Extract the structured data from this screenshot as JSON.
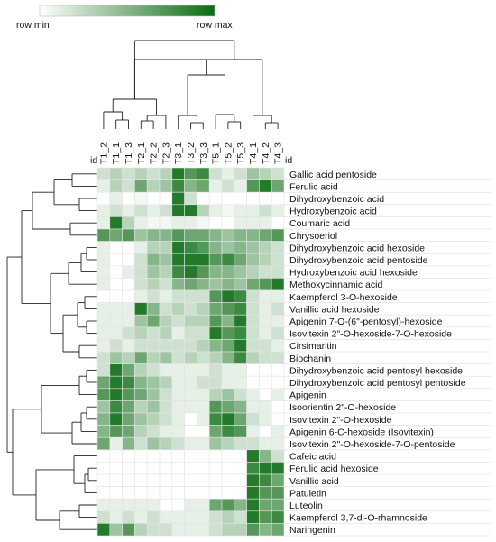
{
  "chart_data": {
    "type": "heatmap",
    "title": "",
    "legend": {
      "min_label": "row min",
      "max_label": "row max",
      "placement": "top-left"
    },
    "id_label": "id",
    "color_min": "#ffffff",
    "color_max": "#0b6b12",
    "columns": [
      "T1_2",
      "T1_1",
      "T1_3",
      "T2_1",
      "T2_2",
      "T2_3",
      "T3_1",
      "T3_2",
      "T3_3",
      "T5_1",
      "T5_2",
      "T5_3",
      "T4_1",
      "T4_2",
      "T4_3"
    ],
    "rows": [
      {
        "name": "Gallic acid pentoside",
        "values": [
          0.2,
          0.3,
          0.2,
          0.3,
          0.2,
          0.3,
          0.9,
          0.7,
          0.8,
          0.2,
          0.1,
          0.2,
          0.4,
          0.3,
          0.2
        ]
      },
      {
        "name": "Ferulic acid",
        "values": [
          0.1,
          0.3,
          0.2,
          0.6,
          0.3,
          0.4,
          0.8,
          0.5,
          0.6,
          0.1,
          0.2,
          0.1,
          0.7,
          0.9,
          0.6
        ]
      },
      {
        "name": "Dihydroxybenzoic acid",
        "values": [
          0.0,
          0.1,
          0.0,
          0.05,
          0.0,
          0.0,
          0.9,
          0.2,
          0.0,
          0.0,
          0.0,
          0.0,
          0.0,
          0.0,
          0.0
        ]
      },
      {
        "name": "Hydroxybenzoic acid",
        "values": [
          0.1,
          0.2,
          0.1,
          0.2,
          0.1,
          0.2,
          0.9,
          0.9,
          0.3,
          0.1,
          0.05,
          0.1,
          0.1,
          0.2,
          0.1
        ]
      },
      {
        "name": "Coumaric acid",
        "values": [
          0.1,
          0.9,
          0.3,
          0.1,
          0.05,
          0.05,
          0.1,
          0.1,
          0.05,
          0.0,
          0.0,
          0.1,
          0.1,
          0.1,
          0.0
        ]
      },
      {
        "name": "Chrysoeriol",
        "values": [
          0.7,
          0.6,
          0.7,
          0.4,
          0.5,
          0.5,
          0.7,
          0.6,
          0.6,
          0.5,
          0.4,
          0.5,
          0.5,
          0.6,
          0.7
        ]
      },
      {
        "name": "Dihydroxybenzoic acid hexoside",
        "values": [
          0.1,
          0.0,
          0.0,
          0.1,
          0.3,
          0.3,
          0.9,
          0.8,
          0.7,
          0.5,
          0.4,
          0.5,
          0.4,
          0.3,
          0.2
        ]
      },
      {
        "name": "Dihydroxybenzoic acid pentoside",
        "values": [
          0.1,
          0.0,
          0.0,
          0.2,
          0.5,
          0.4,
          0.9,
          0.9,
          0.9,
          0.7,
          0.8,
          0.6,
          0.4,
          0.3,
          0.2
        ]
      },
      {
        "name": "Hydroxybenzoic acid hexoside",
        "values": [
          0.1,
          0.0,
          0.1,
          0.2,
          0.4,
          0.3,
          0.8,
          0.9,
          0.7,
          0.5,
          0.5,
          0.4,
          0.3,
          0.2,
          0.2
        ]
      },
      {
        "name": "Methoxycinnamic acid",
        "values": [
          0.1,
          0.0,
          0.0,
          0.2,
          0.3,
          0.2,
          0.5,
          0.6,
          0.5,
          0.4,
          0.5,
          0.4,
          0.6,
          0.7,
          0.9
        ]
      },
      {
        "name": "Kaempferol 3-O-hexoside",
        "values": [
          0.0,
          0.0,
          0.0,
          0.1,
          0.2,
          0.1,
          0.2,
          0.2,
          0.2,
          0.7,
          0.9,
          0.8,
          0.2,
          0.1,
          0.1
        ]
      },
      {
        "name": "Vanillic acid hexoside",
        "values": [
          0.1,
          0.1,
          0.1,
          0.9,
          0.5,
          0.2,
          0.3,
          0.2,
          0.3,
          0.6,
          0.7,
          0.8,
          0.2,
          0.1,
          0.2
        ]
      },
      {
        "name": "Apigenin 7-O-(6\"-pentosyl)-hexoside",
        "values": [
          0.1,
          0.1,
          0.1,
          0.4,
          0.6,
          0.3,
          0.2,
          0.3,
          0.3,
          0.7,
          0.5,
          0.9,
          0.2,
          0.1,
          0.1
        ]
      },
      {
        "name": "Isovitexin 2\"-O-hexoside-7-O-hexoside",
        "values": [
          0.1,
          0.1,
          0.2,
          0.3,
          0.2,
          0.3,
          0.1,
          0.2,
          0.2,
          0.9,
          0.7,
          0.8,
          0.2,
          0.1,
          0.2
        ]
      },
      {
        "name": "Cirsimaritin",
        "values": [
          0.1,
          0.2,
          0.1,
          0.2,
          0.2,
          0.2,
          0.2,
          0.2,
          0.3,
          0.5,
          0.6,
          0.9,
          0.2,
          0.2,
          0.1
        ]
      },
      {
        "name": "Biochanin",
        "values": [
          0.2,
          0.4,
          0.3,
          0.6,
          0.3,
          0.4,
          0.2,
          0.3,
          0.2,
          0.3,
          0.5,
          0.8,
          0.3,
          0.2,
          0.2
        ]
      },
      {
        "name": "Dihydroxybenzoic acid pentosyl hexoside",
        "values": [
          0.2,
          0.9,
          0.6,
          0.3,
          0.2,
          0.1,
          0.1,
          0.1,
          0.1,
          0.2,
          0.1,
          0.1,
          0.0,
          0.0,
          0.0
        ]
      },
      {
        "name": "Dihydroxybenzoic acid pentosyl pentoside",
        "values": [
          0.6,
          0.9,
          0.8,
          0.5,
          0.4,
          0.3,
          0.1,
          0.1,
          0.2,
          0.2,
          0.1,
          0.1,
          0.0,
          0.0,
          0.0
        ]
      },
      {
        "name": "Apigenin",
        "values": [
          0.7,
          0.9,
          0.7,
          0.6,
          0.4,
          0.2,
          0.1,
          0.1,
          0.1,
          0.3,
          0.4,
          0.2,
          0.1,
          0.0,
          0.1
        ]
      },
      {
        "name": "Isoorientin 2\"-O-hexoside",
        "values": [
          0.4,
          0.8,
          0.6,
          0.3,
          0.4,
          0.2,
          0.1,
          0.1,
          0.1,
          0.7,
          0.6,
          0.5,
          0.1,
          0.1,
          0.0
        ]
      },
      {
        "name": "Isovitexin 2\"-O-hexoside",
        "values": [
          0.5,
          0.9,
          0.6,
          0.4,
          0.3,
          0.2,
          0.1,
          0.0,
          0.1,
          0.8,
          0.9,
          0.6,
          0.2,
          0.1,
          0.0
        ]
      },
      {
        "name": "Apigenin 6-C-hexoside (Isovitexin)",
        "values": [
          0.5,
          0.7,
          0.6,
          0.3,
          0.2,
          0.1,
          0.1,
          0.0,
          0.0,
          0.6,
          0.8,
          0.7,
          0.1,
          0.0,
          0.1
        ]
      },
      {
        "name": "Isovitexin 2\"-O-hexoside-7-O-pentoside",
        "values": [
          0.6,
          0.1,
          0.5,
          0.2,
          0.4,
          0.3,
          0.2,
          0.1,
          0.1,
          0.4,
          0.3,
          0.2,
          0.2,
          0.1,
          0.1
        ]
      },
      {
        "name": "Cafeic acid",
        "values": [
          0.0,
          0.0,
          0.0,
          0.0,
          0.0,
          0.0,
          0.0,
          0.0,
          0.0,
          0.0,
          0.0,
          0.0,
          0.9,
          0.5,
          0.2
        ]
      },
      {
        "name": "Ferulic acid hexoside",
        "values": [
          0.0,
          0.0,
          0.0,
          0.0,
          0.0,
          0.0,
          0.0,
          0.0,
          0.0,
          0.0,
          0.0,
          0.0,
          0.8,
          0.9,
          0.9
        ]
      },
      {
        "name": "Vanillic acid",
        "values": [
          0.0,
          0.0,
          0.0,
          0.0,
          0.0,
          0.0,
          0.0,
          0.0,
          0.0,
          0.0,
          0.0,
          0.0,
          0.9,
          0.8,
          0.6
        ]
      },
      {
        "name": "Patuletin",
        "values": [
          0.0,
          0.0,
          0.0,
          0.0,
          0.0,
          0.0,
          0.0,
          0.0,
          0.0,
          0.0,
          0.0,
          0.0,
          0.9,
          0.7,
          0.7
        ]
      },
      {
        "name": "Luteolin",
        "values": [
          0.1,
          0.1,
          0.1,
          0.1,
          0.1,
          0.0,
          0.0,
          0.1,
          0.1,
          0.6,
          0.7,
          0.5,
          0.9,
          0.6,
          0.6
        ]
      },
      {
        "name": "Kaempferol 3,7-di-O-rhamnoside",
        "values": [
          0.2,
          0.1,
          0.2,
          0.1,
          0.2,
          0.1,
          0.1,
          0.1,
          0.1,
          0.2,
          0.3,
          0.2,
          0.9,
          0.7,
          0.8
        ]
      },
      {
        "name": "Naringenin",
        "values": [
          0.9,
          0.4,
          0.7,
          0.3,
          0.2,
          0.2,
          0.1,
          0.1,
          0.1,
          0.2,
          0.3,
          0.3,
          0.7,
          0.5,
          0.6
        ]
      }
    ],
    "column_dendrogram": [
      [
        0,
        2,
        1,
        0.78
      ],
      [
        1,
        3,
        15,
        0.78
      ],
      [
        4,
        5,
        16,
        0.7
      ],
      [
        6,
        8,
        7,
        0.88
      ],
      [
        7,
        17,
        18,
        0.71
      ],
      [
        9,
        11,
        10,
        0.84
      ],
      [
        10,
        12,
        14,
        13,
        0.86
      ],
      [
        11,
        20,
        21,
        0.8
      ]
    ],
    "row_dendrogram": [
      [
        0,
        1,
        0.94
      ],
      [
        2,
        3,
        0.85
      ]
    ]
  }
}
